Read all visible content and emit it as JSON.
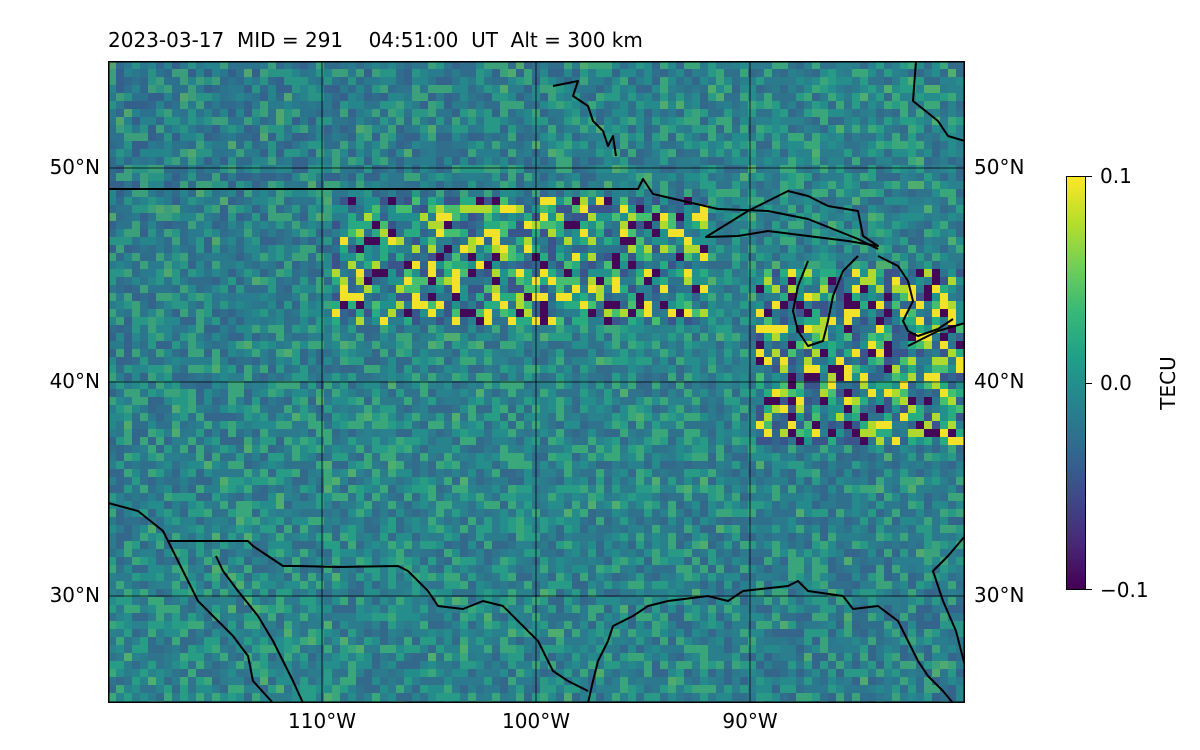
{
  "title": "2023-03-17  MID = 291    04:51:00  UT  Alt = 300 km",
  "map": {
    "lon_range": [
      -120,
      -80
    ],
    "lat_range": [
      25,
      55
    ],
    "lat_ticks": [
      "50°N",
      "40°N",
      "30°N"
    ],
    "lon_ticks": [
      "110°W",
      "100°W",
      "90°W"
    ]
  },
  "colorbar": {
    "label": "TECU",
    "ticks": [
      "0.1",
      "0.0",
      "−0.1"
    ],
    "colormap": "viridis",
    "range": [
      -0.1,
      0.1
    ]
  },
  "colors": {
    "low": "#440154",
    "mid": "#21918c",
    "high": "#fde725",
    "coastline": "#000000"
  }
}
